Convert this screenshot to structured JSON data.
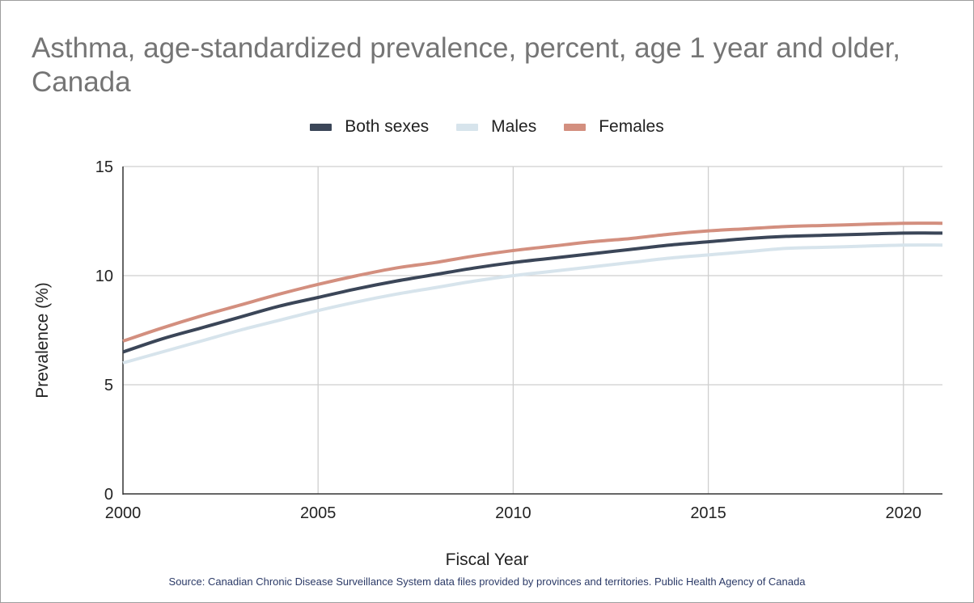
{
  "chart_data": {
    "type": "line",
    "title": "Asthma, age-standardized prevalence, percent, age 1 year and older, Canada",
    "xlabel": "Fiscal Year",
    "ylabel": "Prevalence (%)",
    "xlim": [
      2000,
      2021
    ],
    "ylim": [
      0,
      15
    ],
    "x_ticks": [
      2000,
      2005,
      2010,
      2015,
      2020
    ],
    "y_ticks": [
      0,
      5,
      10,
      15
    ],
    "grid": true,
    "legend_position": "top-center",
    "x": [
      2000,
      2001,
      2002,
      2003,
      2004,
      2005,
      2006,
      2007,
      2008,
      2009,
      2010,
      2011,
      2012,
      2013,
      2014,
      2015,
      2016,
      2017,
      2018,
      2019,
      2020,
      2021
    ],
    "series": [
      {
        "name": "Both sexes",
        "color": "#3b4658",
        "values": [
          6.5,
          7.1,
          7.6,
          8.1,
          8.6,
          9.0,
          9.4,
          9.75,
          10.05,
          10.35,
          10.6,
          10.8,
          11.0,
          11.2,
          11.4,
          11.55,
          11.7,
          11.8,
          11.85,
          11.9,
          11.95,
          11.95
        ]
      },
      {
        "name": "Males",
        "color": "#d7e4ec",
        "values": [
          6.0,
          6.5,
          7.0,
          7.5,
          7.95,
          8.4,
          8.8,
          9.15,
          9.45,
          9.75,
          10.0,
          10.2,
          10.4,
          10.6,
          10.8,
          10.95,
          11.1,
          11.25,
          11.3,
          11.35,
          11.4,
          11.4
        ]
      },
      {
        "name": "Females",
        "color": "#d38f7f",
        "values": [
          7.0,
          7.6,
          8.15,
          8.65,
          9.15,
          9.6,
          10.0,
          10.35,
          10.6,
          10.9,
          11.15,
          11.35,
          11.55,
          11.7,
          11.9,
          12.05,
          12.15,
          12.25,
          12.3,
          12.35,
          12.4,
          12.4
        ]
      }
    ],
    "source": "Source: Canadian Chronic Disease Surveillance System data files provided by provinces and territories. Public Health Agency of Canada"
  }
}
